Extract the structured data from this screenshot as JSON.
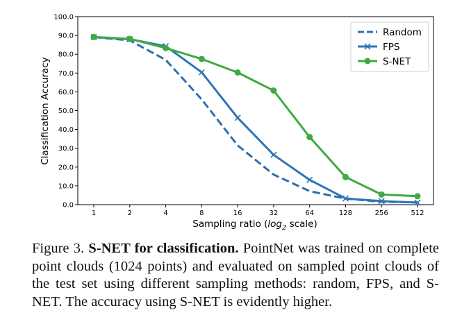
{
  "chart_data": {
    "type": "line",
    "xlabel_main": "Sampling ratio (",
    "xlabel_log": "log",
    "xlabel_sub": "2",
    "xlabel_tail": " scale)",
    "ylabel": "Classification Accuracy",
    "categories": [
      "1",
      "2",
      "4",
      "8",
      "16",
      "32",
      "64",
      "128",
      "256",
      "512"
    ],
    "y_ticks": [
      "0.0",
      "10.0",
      "20.0",
      "30.0",
      "40.0",
      "50.0",
      "60.0",
      "70.0",
      "80.0",
      "90.0",
      "100.0"
    ],
    "ylim": [
      0,
      100
    ],
    "x_scale": "log2",
    "grid": false,
    "legend_position": "top-right",
    "series": [
      {
        "name": "Random",
        "style": "dashed",
        "marker": "none",
        "color": "#2b6fb0",
        "values": [
          89.1,
          87.4,
          77.0,
          56.0,
          31.5,
          16.0,
          7.2,
          3.2,
          1.5,
          1.2
        ]
      },
      {
        "name": "FPS",
        "style": "solid",
        "marker": "x",
        "color": "#2e75b6",
        "values": [
          89.1,
          88.0,
          84.3,
          70.4,
          46.2,
          26.5,
          13.2,
          3.3,
          1.9,
          1.1
        ]
      },
      {
        "name": "S-NET",
        "style": "solid",
        "marker": "circle",
        "color": "#3faa3f",
        "values": [
          89.2,
          88.2,
          83.3,
          77.5,
          70.3,
          60.7,
          36.0,
          14.7,
          5.4,
          4.5
        ]
      }
    ]
  },
  "caption": {
    "label": "Figure 3.",
    "bold": "S-NET for classification.",
    "text": "PointNet was trained on complete point clouds (1024 points) and evaluated on sampled point clouds of the test set using different sampling methods: random, FPS, and S-NET. The accuracy using S-NET is evidently higher."
  }
}
